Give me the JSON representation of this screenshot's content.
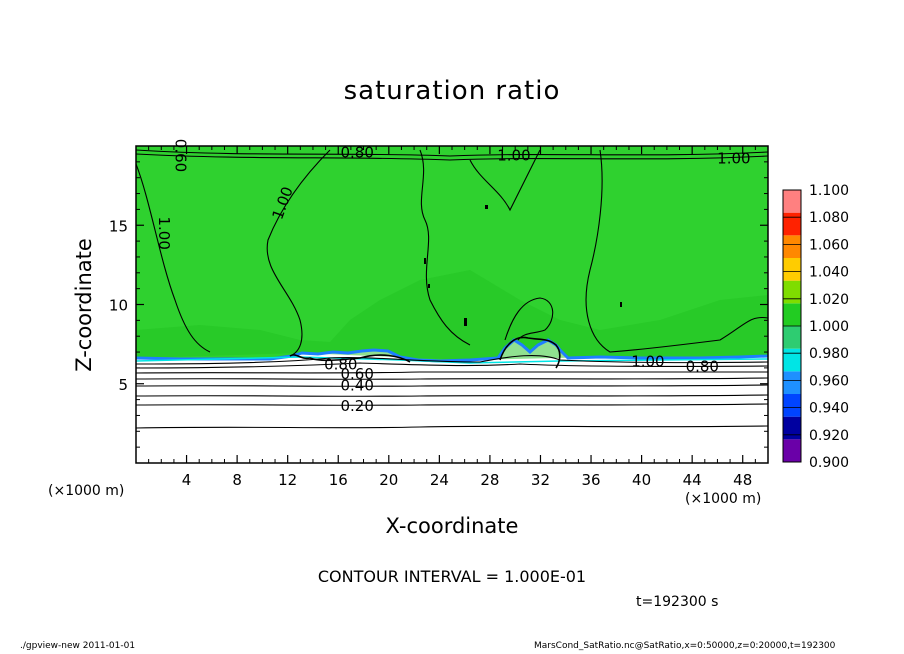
{
  "figure": {
    "title": "saturation ratio",
    "contour_interval": "CONTOUR INTERVAL = 1.000E-01",
    "time": "t=192300 s",
    "footer_left": "./gpview-new   2011-01-01",
    "footer_right": "MarsCond_SatRatio.nc@SatRatio,x=0:50000,z=0:20000,t=192300"
  },
  "chart_data": {
    "type": "heatmap",
    "title": "saturation ratio",
    "xlabel": "X-coordinate",
    "ylabel": "Z-coordinate",
    "x_unit_label": "(×1000 m)",
    "xlim": [
      0,
      50
    ],
    "ylim": [
      0,
      20
    ],
    "x_ticks": [
      4,
      8,
      12,
      16,
      20,
      24,
      28,
      32,
      36,
      40,
      44,
      48
    ],
    "y_ticks": [
      5,
      10,
      15
    ],
    "colorbar": {
      "levels": [
        "0.900",
        "0.920",
        "0.940",
        "0.960",
        "0.980",
        "1.000",
        "1.020",
        "1.040",
        "1.060",
        "1.080",
        "1.100"
      ],
      "colors": [
        "#6a00a8",
        "#0000a0",
        "#0044ff",
        "#1e90ff",
        "#00e5e5",
        "#2ecc71",
        "#22cc22",
        "#7fdd00",
        "#ffcc00",
        "#ff8800",
        "#ff2200",
        "#ff8080"
      ]
    },
    "contour_labels": [
      {
        "text": "0.20",
        "x": 17.5,
        "z": 3.6
      },
      {
        "text": "0.40",
        "x": 17.5,
        "z": 4.9
      },
      {
        "text": "0.60",
        "x": 17.5,
        "z": 5.6
      },
      {
        "text": "0.80",
        "x": 44.8,
        "z": 6.1
      },
      {
        "text": "1.00",
        "x": 40.5,
        "z": 6.4
      },
      {
        "text": "1.00",
        "x": 2.2,
        "z": 14.5
      },
      {
        "text": "1.00",
        "x": 11.6,
        "z": 16.4
      },
      {
        "text": "0.80",
        "x": 16.2,
        "z": 6.2
      },
      {
        "text": "1.00",
        "x": 29.9,
        "z": 19.4
      },
      {
        "text": "1.00",
        "x": 47.3,
        "z": 19.2
      },
      {
        "text": "0.60",
        "x": 3.5,
        "z": 19.4
      },
      {
        "text": "0.80",
        "x": 17.5,
        "z": 19.6
      }
    ],
    "saturated_layer_base_z": 6.5,
    "contour_interval": 0.1,
    "time_s": 192300
  }
}
